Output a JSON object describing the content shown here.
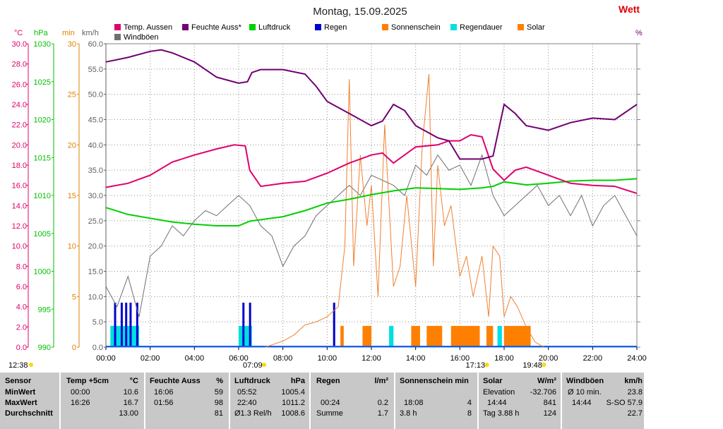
{
  "title": "Montag, 15.09.2025",
  "brand": "Wett",
  "legend": [
    {
      "label": "Temp. Aussen",
      "color": "#e0006c"
    },
    {
      "label": "Feuchte Auss*",
      "color": "#700070"
    },
    {
      "label": "Luftdruck",
      "color": "#00d000"
    },
    {
      "label": "Regen",
      "color": "#0000d0"
    },
    {
      "label": "Sonnenschein",
      "color": "#ff8000"
    },
    {
      "label": "Regendauer",
      "color": "#00e0e0"
    },
    {
      "label": "Solar",
      "color": "#ff8000"
    },
    {
      "label": "Windböen",
      "color": "#707070"
    }
  ],
  "axes": {
    "temp": {
      "unit": "°C",
      "color": "#e0006c",
      "ticks": [
        "30.0",
        "28.0",
        "26.0",
        "24.0",
        "22.0",
        "20.0",
        "18.0",
        "16.0",
        "14.0",
        "12.0",
        "10.0",
        "8.0",
        "6.0",
        "4.0",
        "2.0",
        "0.0"
      ]
    },
    "pressure": {
      "unit": "hPa",
      "color": "#00c000",
      "ticks": [
        "1030",
        "1025",
        "1020",
        "1015",
        "1010",
        "1005",
        "1000",
        "995",
        "990"
      ]
    },
    "minutes": {
      "unit": "min",
      "color": "#e08000",
      "ticks": [
        "30",
        "25",
        "20",
        "15",
        "10",
        "5",
        "0"
      ]
    },
    "wind": {
      "unit": "km/h",
      "color": "#606060",
      "ticks": [
        "60.0",
        "55.0",
        "50.0",
        "45.0",
        "40.0",
        "35.0",
        "30.0",
        "25.0",
        "20.0",
        "15.0",
        "10.0",
        "5.0",
        "0.0"
      ]
    },
    "right_unit": "%",
    "x_ticks": [
      "00:00",
      "02:00",
      "04:00",
      "06:00",
      "08:00",
      "10:00",
      "12:00",
      "14:00",
      "16:00",
      "18:00",
      "20:00",
      "22:00",
      "24:00"
    ]
  },
  "sun_events": [
    {
      "label": "12:38",
      "hour": 0.0
    },
    {
      "label": "07:09",
      "hour": 7.15
    },
    {
      "label": "17:13",
      "hour": 17.22
    },
    {
      "label": "19:48",
      "hour": 19.8
    }
  ],
  "chart_data": {
    "type": "line",
    "x_unit": "hour",
    "xlim": [
      0,
      24
    ],
    "series": [
      {
        "name": "Temp. Aussen",
        "axis": "°C",
        "ylim": [
          0,
          30
        ],
        "x": [
          0,
          1,
          2,
          3,
          4,
          5,
          5.8,
          6.3,
          6.5,
          7,
          8,
          9,
          10,
          11,
          12,
          12.5,
          13,
          14,
          15,
          15.5,
          16,
          16.5,
          17,
          17.5,
          18,
          18.5,
          19,
          20,
          21,
          22,
          23,
          24
        ],
        "y": [
          15.8,
          16.2,
          17.0,
          18.3,
          19.0,
          19.6,
          20.0,
          19.9,
          17.5,
          15.9,
          16.2,
          16.4,
          17.2,
          18.2,
          19.0,
          19.2,
          18.2,
          19.8,
          20.0,
          20.4,
          20.4,
          21.0,
          20.8,
          17.6,
          16.5,
          17.5,
          17.8,
          17.0,
          16.2,
          16.0,
          15.9,
          15.2
        ]
      },
      {
        "name": "Feuchte Auss*",
        "axis": "%",
        "ylim": [
          0,
          100
        ],
        "x": [
          0,
          1,
          2,
          2.5,
          3,
          4,
          5,
          5.5,
          6,
          6.4,
          6.6,
          7,
          8,
          9,
          9.5,
          10,
          11,
          12,
          12.5,
          13,
          13.5,
          14,
          15,
          15.5,
          16,
          16.5,
          17,
          17.5,
          18,
          18.5,
          19,
          20,
          21,
          22,
          23,
          24
        ],
        "y": [
          94,
          95.5,
          97.5,
          98,
          97,
          94,
          89,
          88,
          87,
          87.5,
          90.5,
          91.5,
          91.5,
          90,
          86,
          81,
          77,
          73,
          74.5,
          80,
          78,
          73,
          69,
          68,
          62,
          62,
          62,
          63,
          80,
          77,
          73,
          71.5,
          74,
          75.5,
          75,
          80
        ]
      },
      {
        "name": "Luftdruck",
        "axis": "hPa",
        "ylim": [
          990,
          1030
        ],
        "x": [
          0,
          1,
          2,
          3,
          4,
          5,
          6,
          6.5,
          7,
          8,
          9,
          10,
          11,
          12,
          13,
          14,
          15,
          16,
          17,
          17.5,
          18,
          19,
          20,
          21,
          22,
          23,
          24
        ],
        "y": [
          1008.4,
          1007.5,
          1007.0,
          1006.5,
          1006.2,
          1006.0,
          1006.0,
          1006.6,
          1006.8,
          1007.2,
          1008.0,
          1009.0,
          1009.5,
          1010.1,
          1010.6,
          1011.0,
          1010.9,
          1010.8,
          1011.0,
          1011.2,
          1011.8,
          1011.4,
          1011.6,
          1011.9,
          1012.0,
          1012.0,
          1012.2
        ]
      },
      {
        "name": "Windböen",
        "axis": "km/h",
        "ylim": [
          0,
          60
        ],
        "x": [
          0,
          0.5,
          1,
          1.5,
          2,
          2.5,
          3,
          3.5,
          4,
          4.5,
          5,
          5.5,
          6,
          6.5,
          7,
          7.5,
          8,
          8.5,
          9,
          9.5,
          10,
          10.5,
          11,
          11.5,
          12,
          12.5,
          13,
          13.5,
          14,
          14.5,
          15,
          15.5,
          16,
          16.5,
          17,
          17.5,
          18,
          18.5,
          19,
          19.5,
          20,
          20.5,
          21,
          21.5,
          22,
          22.5,
          23,
          23.5,
          24
        ],
        "y": [
          12,
          8,
          14,
          6,
          18,
          20,
          24,
          22,
          25,
          27,
          26,
          28,
          30,
          28,
          24,
          22,
          16,
          20,
          22,
          26,
          28,
          30,
          32,
          30,
          34,
          33,
          32,
          30,
          36,
          34,
          38,
          35,
          36,
          32,
          38,
          30,
          26,
          28,
          30,
          32,
          28,
          30,
          26,
          30,
          24,
          28,
          30,
          26,
          22
        ]
      },
      {
        "name": "Solar",
        "axis": "min",
        "ylim": [
          0,
          30
        ],
        "x": [
          7.2,
          8,
          8.5,
          9,
          9.5,
          10,
          10.5,
          10.8,
          11,
          11.2,
          11.5,
          11.8,
          12,
          12.3,
          12.6,
          13,
          13.3,
          13.6,
          14,
          14.3,
          14.6,
          14.8,
          15,
          15.3,
          15.6,
          16,
          16.3,
          16.6,
          17,
          17.3,
          17.5,
          17.8,
          18,
          18.3,
          18.6,
          19,
          19.4,
          19.8
        ],
        "y": [
          0,
          0.6,
          1.2,
          2.2,
          2.5,
          3.0,
          4.0,
          10.0,
          26.5,
          8.0,
          19.0,
          12.0,
          16.0,
          5.0,
          22.0,
          6.0,
          8.0,
          15.0,
          6.0,
          20.0,
          27.0,
          8.0,
          18.0,
          12.0,
          14.0,
          7.0,
          9.0,
          5.0,
          9.0,
          3.0,
          10.0,
          9.0,
          3.0,
          5.0,
          4.0,
          2.0,
          0.5,
          0
        ]
      }
    ],
    "bars": {
      "Regen": {
        "axis": "min",
        "ylim": [
          0,
          30
        ],
        "x": [
          0.4,
          0.7,
          0.9,
          1.1,
          1.4,
          6.2,
          6.5,
          10.3
        ],
        "y": [
          4.4,
          4.4,
          4.4,
          4.4,
          4.4,
          4.4,
          4.4,
          4.4
        ]
      },
      "Regendauer": [
        {
          "from": 0.2,
          "to": 1.5,
          "y": 2.1
        },
        {
          "from": 6.0,
          "to": 6.6,
          "y": 2.1
        },
        {
          "from": 12.8,
          "to": 13.0,
          "y": 2.1
        },
        {
          "from": 17.7,
          "to": 17.9,
          "y": 2.1
        }
      ],
      "Sonnenschein": [
        {
          "from": 10.6,
          "to": 10.75,
          "y": 2.1
        },
        {
          "from": 11.6,
          "to": 12.0,
          "y": 2.1
        },
        {
          "from": 13.8,
          "to": 14.2,
          "y": 2.1
        },
        {
          "from": 14.5,
          "to": 15.2,
          "y": 2.1
        },
        {
          "from": 15.6,
          "to": 16.9,
          "y": 2.1
        },
        {
          "from": 17.2,
          "to": 17.5,
          "y": 2.1
        },
        {
          "from": 18.0,
          "to": 19.2,
          "y": 2.1
        }
      ]
    }
  },
  "stats": {
    "sensor": {
      "header": "Sensor",
      "rows": [
        "MinWert",
        "MaxWert",
        "Durchschnitt"
      ]
    },
    "temp": {
      "header": "Temp +5cm",
      "unit": "°C",
      "min": [
        "00:00",
        "10.6"
      ],
      "max": [
        "16:26",
        "16.7"
      ],
      "avg": [
        "",
        "13.00"
      ]
    },
    "feuchte": {
      "header": "Feuchte Auss",
      "unit": "%",
      "min": [
        "16:06",
        "59"
      ],
      "max": [
        "01:56",
        "98"
      ],
      "avg": [
        "",
        "81"
      ]
    },
    "luftdruck": {
      "header": "Luftdruck",
      "unit": "hPa",
      "min": [
        "05:52",
        "1005.4"
      ],
      "max": [
        "22:40",
        "1011.2"
      ],
      "avg": [
        "Ø1.3 Rel/h",
        "1008.6"
      ]
    },
    "regen": {
      "header": "Regen",
      "unit": "l/m²",
      "min": [
        "",
        ""
      ],
      "max": [
        "00:24",
        "0.2"
      ],
      "avg": [
        "Summe",
        "1.7"
      ]
    },
    "sonne": {
      "header": "Sonnenschein min",
      "min": [
        "",
        ""
      ],
      "max": [
        "18:08",
        "4"
      ],
      "avg": [
        "3.8 h",
        "8"
      ]
    },
    "solar": {
      "header": "Solar",
      "unit": "W/m²",
      "min": [
        "Elevation",
        "-32.706"
      ],
      "max": [
        "14:44",
        "841"
      ],
      "avg": [
        "Tag 3.88 h",
        "124"
      ]
    },
    "wind": {
      "header": "Windböen",
      "unit": "km/h",
      "min": [
        "Ø 10 min.",
        "23.8"
      ],
      "max": [
        "14:44",
        "S-SO 57.9"
      ],
      "avg": [
        "",
        "22.7"
      ]
    }
  }
}
